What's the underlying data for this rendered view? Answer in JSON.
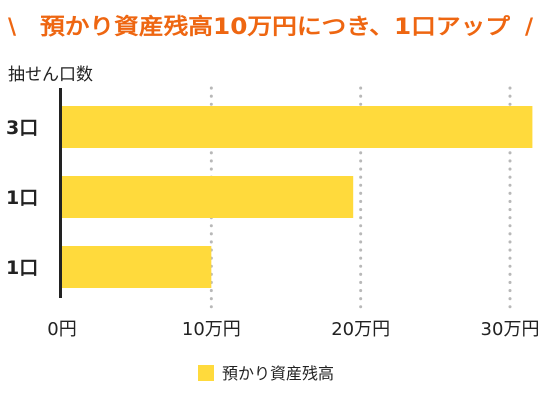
{
  "colors": {
    "accent": "#ee6611",
    "bar": "#ffda3c",
    "axis": "#222222",
    "grid": "#b8b8b8",
    "text": "#222222"
  },
  "title": {
    "left_slash": "\\",
    "text": "預かり資産残高10万円につき、1口アップ",
    "right_slash": "/"
  },
  "chart_data": {
    "type": "bar",
    "orientation": "horizontal",
    "ylabel": "抽せん口数",
    "categories": [
      "3口",
      "1口",
      "1口"
    ],
    "series": [
      {
        "name": "預かり資産残高",
        "values": [
          315000,
          195000,
          100000
        ]
      }
    ],
    "xlim": [
      0,
      320000
    ],
    "x_ticks": [
      {
        "value": 0,
        "label": "0円"
      },
      {
        "value": 100000,
        "label": "10万円"
      },
      {
        "value": 200000,
        "label": "20万円"
      },
      {
        "value": 300000,
        "label": "30万円"
      }
    ],
    "grid": "dotted vertical lines at 10万円, 20万円, 30万円",
    "legend_position": "bottom-center"
  }
}
